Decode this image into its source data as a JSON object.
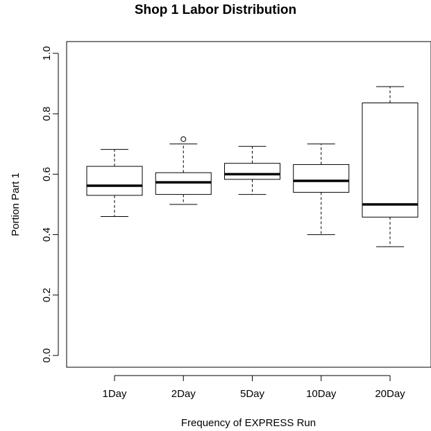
{
  "chart_data": {
    "type": "boxplot",
    "title": "Shop 1 Labor Distribution",
    "xlabel": "Frequency of EXPRESS Run",
    "ylabel": "Portion Part 1",
    "ylim": [
      0.0,
      1.0
    ],
    "yticks": [
      "0.0",
      "0.2",
      "0.4",
      "0.6",
      "0.8",
      "1.0"
    ],
    "categories": [
      "1Day",
      "2Day",
      "5Day",
      "10Day",
      "20Day"
    ],
    "boxes": [
      {
        "category": "1Day",
        "whisker_low": 0.46,
        "q1": 0.53,
        "median": 0.562,
        "q3": 0.626,
        "whisker_high": 0.682,
        "outliers": []
      },
      {
        "category": "2Day",
        "whisker_low": 0.5,
        "q1": 0.533,
        "median": 0.573,
        "q3": 0.605,
        "whisker_high": 0.7,
        "outliers": [
          0.716
        ]
      },
      {
        "category": "5Day",
        "whisker_low": 0.533,
        "q1": 0.583,
        "median": 0.6,
        "q3": 0.636,
        "whisker_high": 0.692,
        "outliers": []
      },
      {
        "category": "10Day",
        "whisker_low": 0.4,
        "q1": 0.54,
        "median": 0.578,
        "q3": 0.632,
        "whisker_high": 0.7,
        "outliers": []
      },
      {
        "category": "20Day",
        "whisker_low": 0.36,
        "q1": 0.458,
        "median": 0.5,
        "q3": 0.836,
        "whisker_high": 0.89,
        "outliers": []
      }
    ]
  }
}
